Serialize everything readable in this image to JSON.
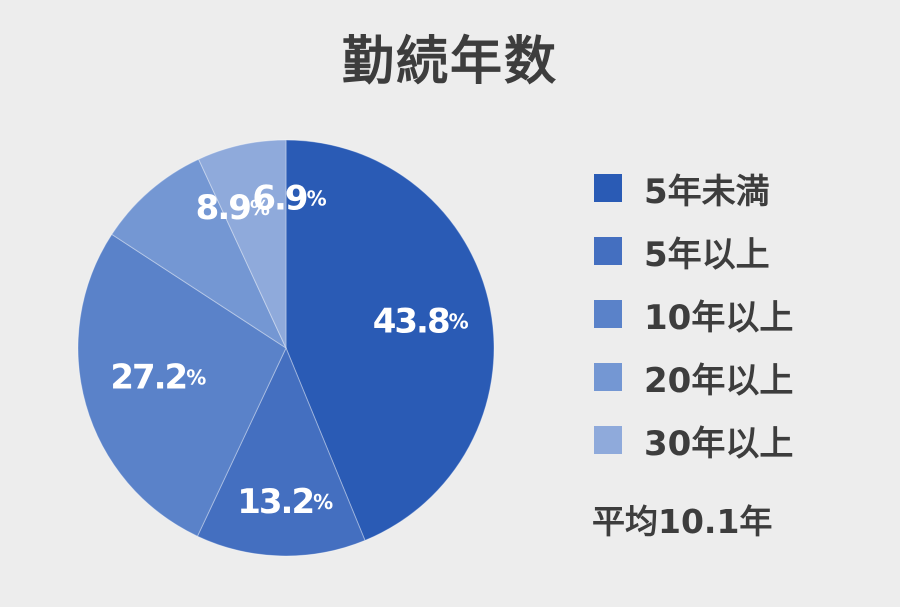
{
  "chart_data": {
    "type": "pie",
    "title": "勤続年数",
    "unit": "%",
    "slices": [
      {
        "label": "5年未満",
        "value": 43.8,
        "value_text": "43.8",
        "color": "#2a5bb5"
      },
      {
        "label": "5年以上",
        "value": 13.2,
        "value_text": "13.2",
        "color": "#446fc0"
      },
      {
        "label": "10年以上",
        "value": 27.2,
        "value_text": "27.2",
        "color": "#5a82c9"
      },
      {
        "label": "20年以上",
        "value": 8.9,
        "value_text": "8.9",
        "color": "#7497d3"
      },
      {
        "label": "30年以上",
        "value": 6.9,
        "value_text": "6.9",
        "color": "#8faadb"
      }
    ],
    "note": "平均10.1年",
    "legend_position": "right"
  }
}
